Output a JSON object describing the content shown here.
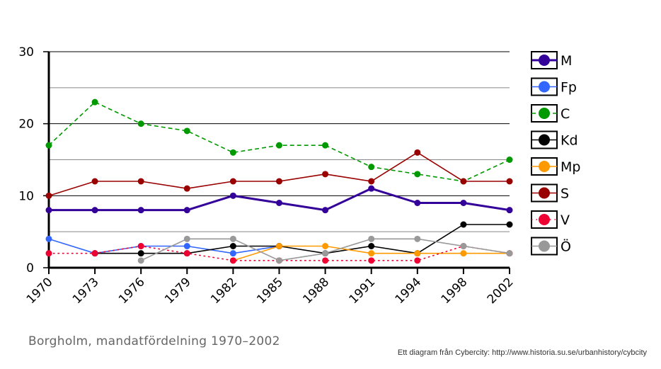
{
  "chart_data": {
    "type": "line",
    "title": "Borgholm, mandatfördelning 1970–2002",
    "xlabel": "",
    "ylabel": "",
    "categories": [
      "1970",
      "1973",
      "1976",
      "1979",
      "1982",
      "1985",
      "1988",
      "1991",
      "1994",
      "1998",
      "2002"
    ],
    "ylim": [
      0,
      30
    ],
    "yticks": [
      0,
      10,
      20,
      30
    ],
    "grid": true,
    "legend_position": "right",
    "series": [
      {
        "name": "M",
        "color": "#330099",
        "dash": "solid",
        "width": 3,
        "values": [
          8,
          8,
          8,
          8,
          10,
          9,
          8,
          11,
          9,
          9,
          8
        ]
      },
      {
        "name": "Fp",
        "color": "#3366ff",
        "dash": "solid",
        "width": 1.6,
        "values": [
          4,
          2,
          3,
          3,
          2,
          3,
          null,
          null,
          null,
          null,
          null
        ]
      },
      {
        "name": "C",
        "color": "#009900",
        "dash": "dashed",
        "width": 1.6,
        "values": [
          17,
          23,
          20,
          19,
          16,
          17,
          17,
          14,
          13,
          12,
          15
        ]
      },
      {
        "name": "Kd",
        "color": "#000000",
        "dash": "solid",
        "width": 1.6,
        "values": [
          null,
          2,
          2,
          2,
          3,
          3,
          2,
          3,
          2,
          6,
          6
        ]
      },
      {
        "name": "Mp",
        "color": "#ff9900",
        "dash": "solid",
        "width": 1.6,
        "values": [
          null,
          null,
          null,
          null,
          1,
          3,
          3,
          2,
          2,
          2,
          2
        ]
      },
      {
        "name": "S",
        "color": "#990000",
        "dash": "solid",
        "width": 1.6,
        "values": [
          10,
          12,
          12,
          11,
          12,
          12,
          13,
          12,
          16,
          12,
          12
        ]
      },
      {
        "name": "V",
        "color": "#ee0033",
        "dash": "dotted",
        "width": 1.6,
        "values": [
          2,
          2,
          3,
          2,
          1,
          1,
          1,
          1,
          1,
          3,
          2
        ]
      },
      {
        "name": "Ö",
        "color": "#999999",
        "dash": "solid",
        "width": 1.6,
        "values": [
          null,
          null,
          1,
          4,
          4,
          1,
          2,
          4,
          4,
          3,
          2
        ]
      }
    ]
  },
  "caption": "Borgholm, mandatfördelning 1970–2002",
  "source": "Ett diagram från Cybercity: http://www.historia.su.se/urbanhistory/cybcity"
}
